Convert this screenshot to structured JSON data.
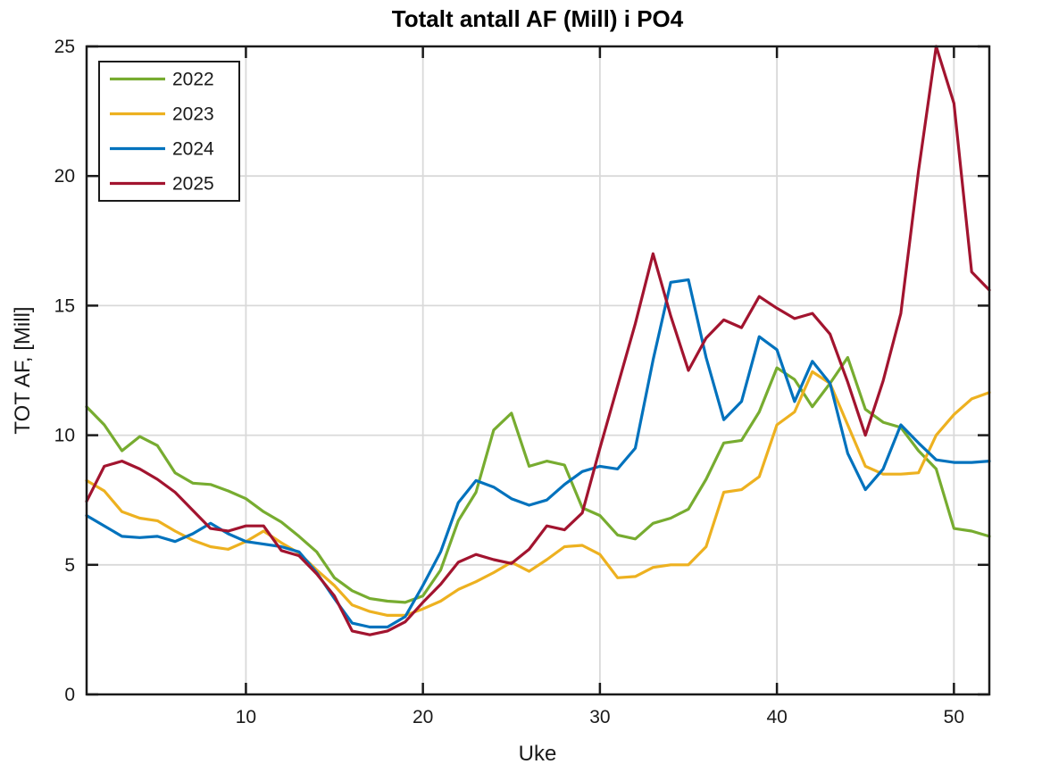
{
  "chart_data": {
    "type": "line",
    "title": "Totalt antall AF (Mill) i PO4",
    "xlabel": "Uke",
    "ylabel": "TOT AF, [Mill]",
    "xlim": [
      1,
      52
    ],
    "ylim": [
      0,
      25
    ],
    "xticks": [
      10,
      20,
      30,
      40,
      50
    ],
    "yticks": [
      0,
      5,
      10,
      15,
      20,
      25
    ],
    "grid": true,
    "legend_position": "top-left",
    "x_unit": "week number 1-52",
    "series": [
      {
        "name": "2022",
        "color": "#77AC30",
        "values": [
          11.1,
          10.4,
          9.4,
          9.95,
          9.6,
          8.55,
          8.15,
          8.1,
          7.85,
          7.55,
          7.05,
          6.65,
          6.1,
          5.5,
          4.5,
          4.0,
          3.7,
          3.6,
          3.55,
          3.8,
          4.8,
          6.7,
          7.8,
          10.2,
          10.85,
          8.8,
          9.0,
          8.85,
          7.2,
          6.9,
          6.15,
          6.0,
          6.6,
          6.8,
          7.15,
          8.3,
          9.7,
          9.8,
          10.9,
          12.6,
          12.15,
          11.1,
          12.0,
          13.0,
          11.0,
          10.5,
          10.3,
          9.4,
          8.7,
          6.4,
          6.3,
          6.1
        ]
      },
      {
        "name": "2023",
        "color": "#EDB120",
        "values": [
          8.25,
          7.85,
          7.05,
          6.8,
          6.7,
          6.3,
          5.95,
          5.7,
          5.6,
          5.9,
          6.3,
          5.85,
          5.45,
          4.8,
          4.2,
          3.45,
          3.2,
          3.05,
          3.05,
          3.3,
          3.6,
          4.05,
          4.35,
          4.7,
          5.1,
          4.75,
          5.2,
          5.7,
          5.75,
          5.4,
          4.5,
          4.55,
          4.9,
          5.0,
          5.0,
          5.7,
          7.8,
          7.9,
          8.4,
          10.4,
          10.9,
          12.45,
          12.0,
          10.4,
          8.8,
          8.5,
          8.5,
          8.55,
          10.0,
          10.8,
          11.4,
          11.65
        ]
      },
      {
        "name": "2024",
        "color": "#0072BD",
        "values": [
          6.9,
          6.5,
          6.1,
          6.05,
          6.1,
          5.9,
          6.2,
          6.6,
          6.2,
          5.9,
          5.8,
          5.7,
          5.5,
          4.7,
          3.7,
          2.75,
          2.6,
          2.6,
          3.0,
          4.2,
          5.5,
          7.4,
          8.25,
          8.0,
          7.55,
          7.3,
          7.5,
          8.1,
          8.6,
          8.8,
          8.7,
          9.5,
          12.9,
          15.9,
          16.0,
          13.0,
          10.6,
          11.3,
          13.8,
          13.3,
          11.3,
          12.85,
          12.0,
          9.3,
          7.9,
          8.7,
          10.4,
          9.7,
          9.05,
          8.95,
          8.95,
          9.0
        ]
      },
      {
        "name": "2025",
        "color": "#A2142F",
        "values": [
          7.45,
          8.8,
          9.0,
          8.7,
          8.3,
          7.8,
          7.1,
          6.4,
          6.3,
          6.5,
          6.5,
          5.55,
          5.35,
          4.65,
          3.8,
          2.45,
          2.3,
          2.45,
          2.8,
          3.55,
          4.25,
          5.1,
          5.4,
          5.2,
          5.05,
          5.6,
          6.5,
          6.35,
          7.0,
          9.5,
          11.9,
          14.3,
          17.0,
          14.6,
          12.5,
          13.75,
          14.45,
          14.15,
          15.35,
          14.9,
          14.5,
          14.7,
          13.9,
          12.05,
          10.0,
          12.1,
          14.7,
          20.2,
          25.0,
          22.8,
          16.3,
          15.6
        ]
      }
    ],
    "colors": {
      "grid": "#d9d9d9",
      "axis": "#1a1a1a",
      "background": "#ffffff",
      "legend_border": "#1a1a1a"
    }
  }
}
